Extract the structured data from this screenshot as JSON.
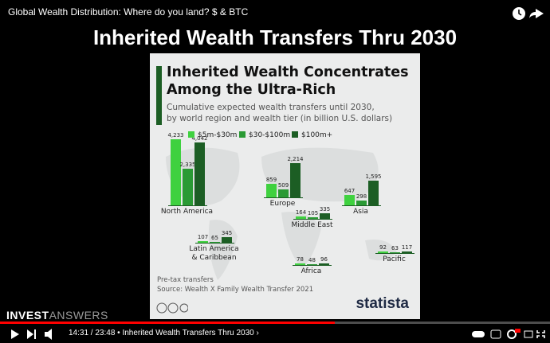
{
  "video_title": "Global Wealth Distribution: Where do you land? $ & BTC",
  "slide_title": "Inherited Wealth Transfers Thru 2030",
  "channel_logo": {
    "part1": "INVEST",
    "part2": "ANSWERS"
  },
  "player": {
    "time": "14:31 / 23:48",
    "chapter": "Inherited Wealth Transfers Thru 2030"
  },
  "chart_data": {
    "type": "bar",
    "title": [
      "Inherited Wealth Concentrates",
      "Among the Ultra-Rich"
    ],
    "subtitle": [
      "Cumulative expected wealth transfers until 2030,",
      "by world region and wealth tier (in billion U.S. dollars)"
    ],
    "categories": [
      "North America",
      "Europe",
      "Asia",
      "Middle East",
      "Latin America & Caribbean",
      "Africa",
      "Pacific"
    ],
    "series": [
      {
        "name": "$5m-$30m",
        "color": "#3fd13f",
        "values": [
          4233,
          859,
          647,
          164,
          107,
          78,
          92
        ],
        "value_labels": [
          "4,233",
          "859",
          "647",
          "164",
          "107",
          "78",
          "92"
        ]
      },
      {
        "name": "$30-$100m",
        "color": "#2a9a34",
        "values": [
          2335,
          509,
          298,
          105,
          65,
          48,
          63
        ],
        "value_labels": [
          "2,335",
          "509",
          "298",
          "105",
          "65",
          "48",
          "63"
        ]
      },
      {
        "name": "$100m+",
        "color": "#1c5e24",
        "values": [
          4042,
          2214,
          1595,
          335,
          345,
          96,
          117
        ],
        "value_labels": [
          "4,042",
          "2,214",
          "1,595",
          "335",
          "345",
          "96",
          "117"
        ]
      }
    ],
    "note": "Pre-tax transfers",
    "source": "Source: Wealth X Family Wealth Transfer 2021",
    "brand": "statista"
  }
}
